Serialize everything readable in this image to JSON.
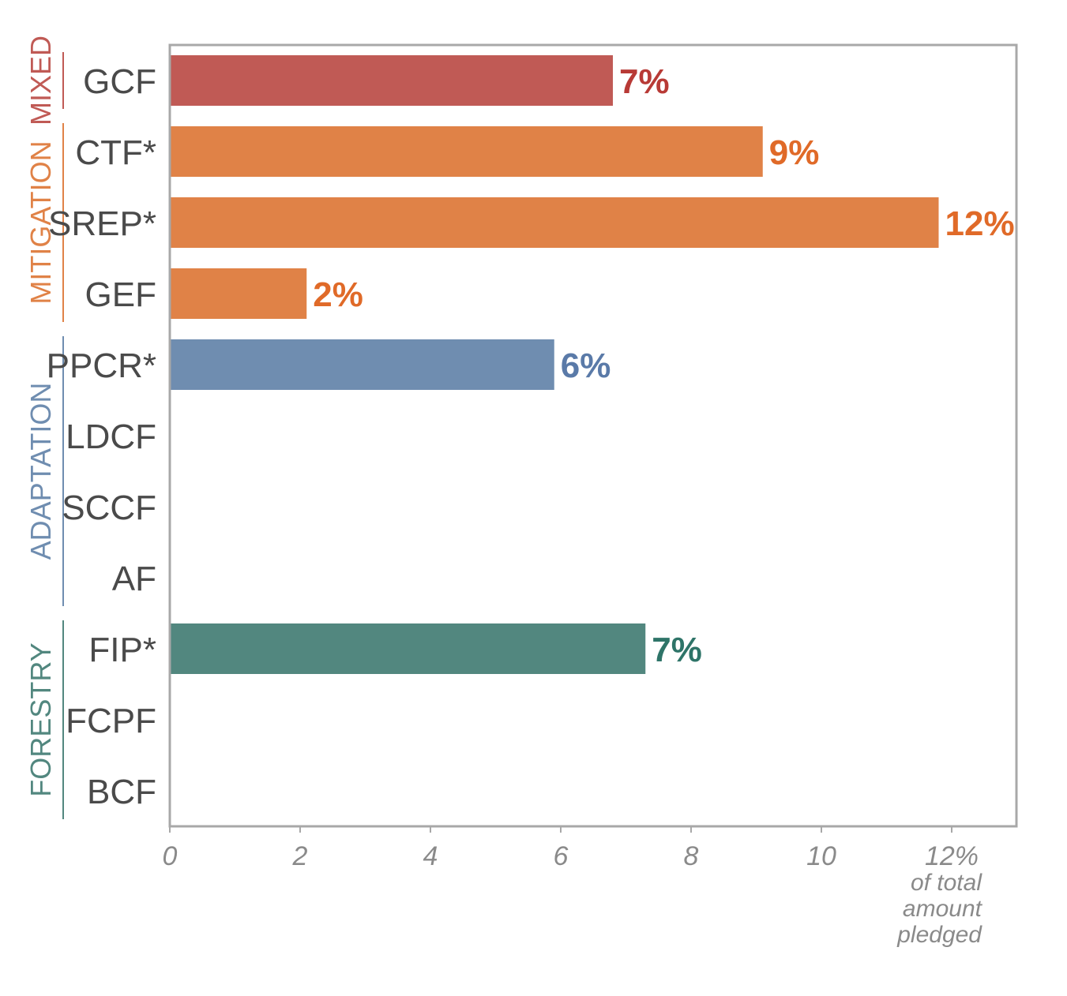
{
  "chart_data": {
    "type": "bar",
    "orientation": "horizontal",
    "categories": [
      "GCF",
      "CTF*",
      "SREP*",
      "GEF",
      "PPCR*",
      "LDCF",
      "SCCF",
      "AF",
      "FIP*",
      "FCPF",
      "BCF"
    ],
    "values": [
      6.8,
      9.1,
      11.8,
      2.1,
      5.9,
      null,
      null,
      null,
      7.3,
      null,
      null
    ],
    "value_labels": [
      "7%",
      "9%",
      "12%",
      "2%",
      "6%",
      "",
      "",
      "",
      "7%",
      "",
      ""
    ],
    "bar_groups": [
      "MIXED",
      "MITIGATION",
      "MITIGATION",
      "MITIGATION",
      "ADAPTATION",
      "ADAPTATION",
      "ADAPTATION",
      "ADAPTATION",
      "FORESTRY",
      "FORESTRY",
      "FORESTRY"
    ],
    "groups": [
      {
        "name": "MIXED",
        "color": "#c05a55",
        "label_color": "#b83a36",
        "count": 1
      },
      {
        "name": "MITIGATION",
        "color": "#e08247",
        "label_color": "#e06a28",
        "count": 3
      },
      {
        "name": "ADAPTATION",
        "color": "#6f8db0",
        "label_color": "#5a7aa8",
        "count": 4
      },
      {
        "name": "FORESTRY",
        "color": "#52877f",
        "label_color": "#2e7468",
        "count": 3
      }
    ],
    "xlim": [
      0,
      13
    ],
    "xticks": [
      0,
      2,
      4,
      6,
      8,
      10,
      12
    ],
    "xtick_labels": [
      "0",
      "2",
      "4",
      "6",
      "8",
      "10",
      "12%"
    ],
    "x_unit_lines": [
      "of total",
      "amount",
      "pledged"
    ],
    "title": "",
    "xlabel": "",
    "ylabel": "",
    "grid": false,
    "frame_color": "#a8a8a8"
  }
}
